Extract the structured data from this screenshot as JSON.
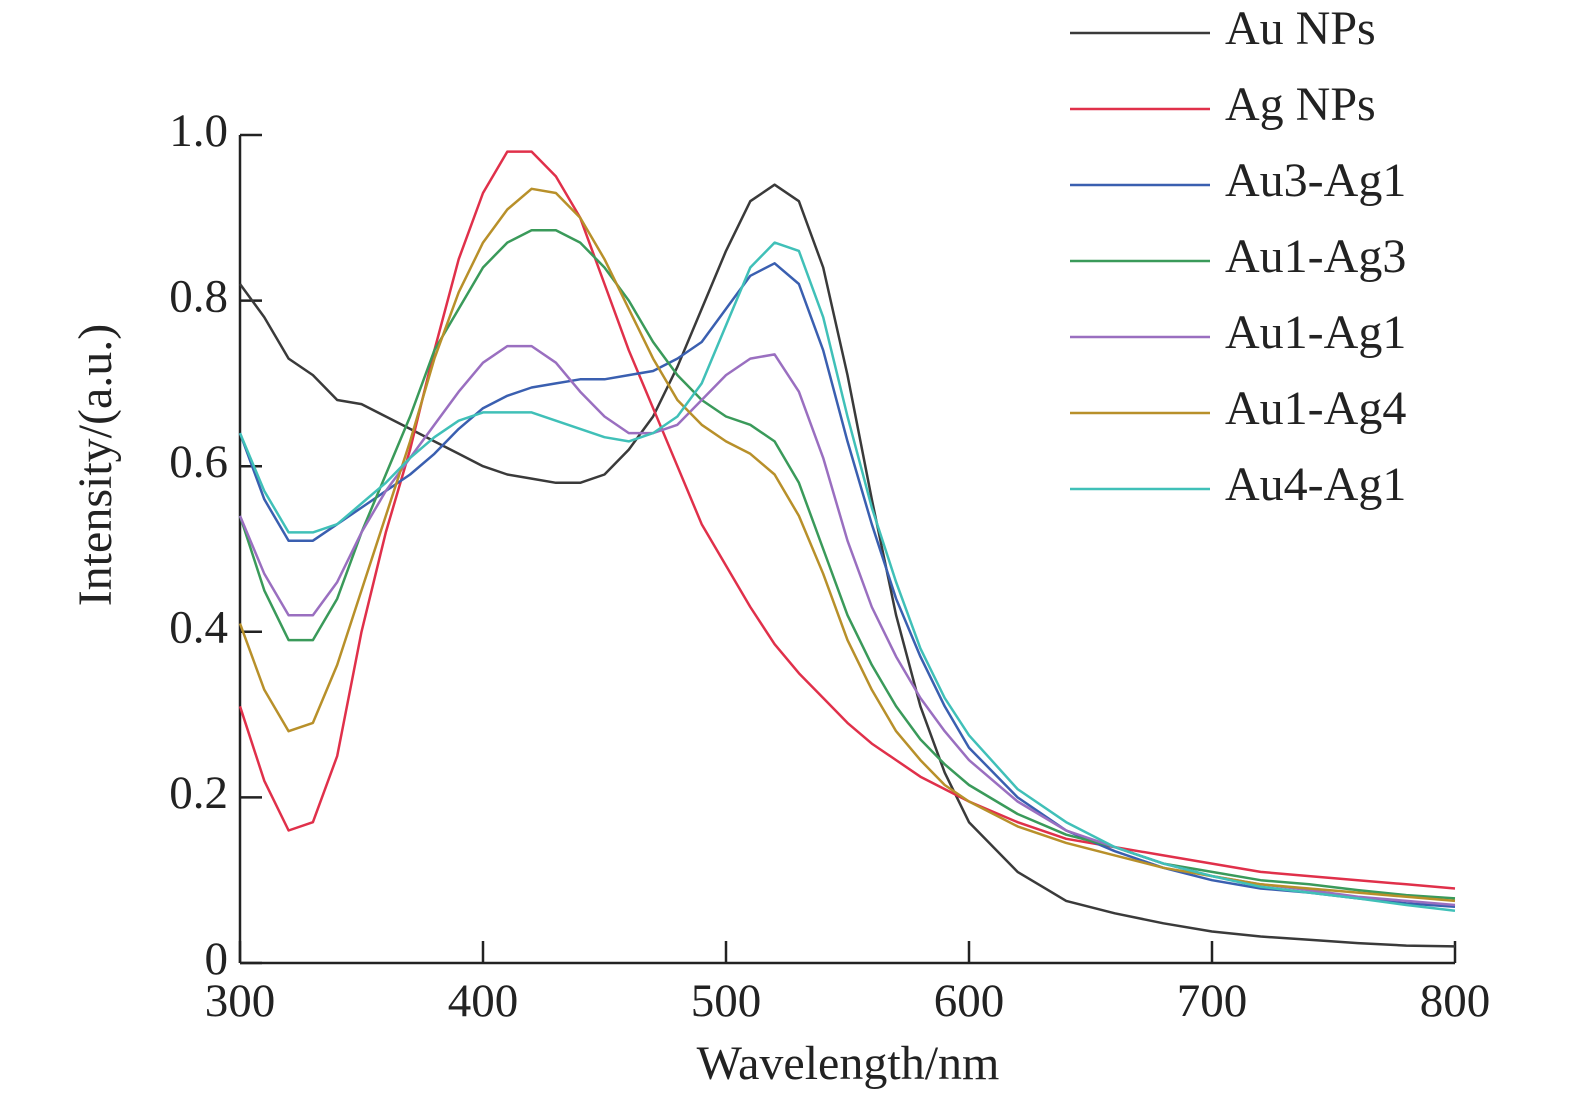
{
  "chart_data": {
    "type": "line",
    "xlabel": "Wavelength/nm",
    "ylabel": "Intensity/(a.u.)",
    "x": [
      300,
      310,
      320,
      330,
      340,
      350,
      360,
      370,
      380,
      390,
      400,
      410,
      420,
      430,
      440,
      450,
      460,
      470,
      480,
      490,
      500,
      510,
      520,
      530,
      540,
      550,
      560,
      570,
      580,
      590,
      600,
      620,
      640,
      660,
      680,
      700,
      720,
      740,
      760,
      780,
      800
    ],
    "series": [
      {
        "name": "Au NPs",
        "color": "#3a3a3a",
        "values": [
          0.82,
          0.78,
          0.73,
          0.71,
          0.68,
          0.675,
          0.66,
          0.645,
          0.63,
          0.615,
          0.6,
          0.59,
          0.585,
          0.58,
          0.58,
          0.59,
          0.62,
          0.66,
          0.72,
          0.79,
          0.86,
          0.92,
          0.94,
          0.92,
          0.84,
          0.71,
          0.56,
          0.42,
          0.31,
          0.23,
          0.17,
          0.11,
          0.075,
          0.06,
          0.048,
          0.038,
          0.032,
          0.028,
          0.024,
          0.021,
          0.02
        ]
      },
      {
        "name": "Ag NPs",
        "color": "#e0304a",
        "values": [
          0.31,
          0.22,
          0.16,
          0.17,
          0.25,
          0.4,
          0.52,
          0.62,
          0.74,
          0.85,
          0.93,
          0.98,
          0.98,
          0.95,
          0.9,
          0.82,
          0.74,
          0.67,
          0.6,
          0.53,
          0.48,
          0.43,
          0.385,
          0.35,
          0.32,
          0.29,
          0.265,
          0.245,
          0.225,
          0.21,
          0.195,
          0.17,
          0.15,
          0.14,
          0.13,
          0.12,
          0.11,
          0.105,
          0.1,
          0.095,
          0.09
        ]
      },
      {
        "name": "Au3-Ag1",
        "color": "#3a5fb0",
        "values": [
          0.64,
          0.56,
          0.51,
          0.51,
          0.53,
          0.55,
          0.57,
          0.59,
          0.615,
          0.645,
          0.67,
          0.685,
          0.695,
          0.7,
          0.705,
          0.705,
          0.71,
          0.715,
          0.73,
          0.75,
          0.79,
          0.83,
          0.845,
          0.82,
          0.74,
          0.63,
          0.53,
          0.44,
          0.37,
          0.31,
          0.26,
          0.2,
          0.16,
          0.135,
          0.115,
          0.1,
          0.09,
          0.085,
          0.078,
          0.072,
          0.068
        ]
      },
      {
        "name": "Au1-Ag3",
        "color": "#3a9a5a",
        "values": [
          0.54,
          0.45,
          0.39,
          0.39,
          0.44,
          0.52,
          0.59,
          0.66,
          0.74,
          0.79,
          0.84,
          0.87,
          0.885,
          0.885,
          0.87,
          0.84,
          0.8,
          0.75,
          0.71,
          0.68,
          0.66,
          0.65,
          0.63,
          0.58,
          0.5,
          0.42,
          0.36,
          0.31,
          0.27,
          0.24,
          0.215,
          0.18,
          0.155,
          0.14,
          0.12,
          0.11,
          0.1,
          0.095,
          0.088,
          0.082,
          0.078
        ]
      },
      {
        "name": "Au1-Ag1",
        "color": "#9a6fc0",
        "values": [
          0.54,
          0.47,
          0.42,
          0.42,
          0.46,
          0.52,
          0.57,
          0.61,
          0.65,
          0.69,
          0.725,
          0.745,
          0.745,
          0.725,
          0.69,
          0.66,
          0.64,
          0.64,
          0.65,
          0.68,
          0.71,
          0.73,
          0.735,
          0.69,
          0.61,
          0.51,
          0.43,
          0.37,
          0.32,
          0.28,
          0.245,
          0.195,
          0.16,
          0.14,
          0.12,
          0.105,
          0.095,
          0.088,
          0.08,
          0.075,
          0.07
        ]
      },
      {
        "name": "Au1-Ag4",
        "color": "#b8902a",
        "values": [
          0.41,
          0.33,
          0.28,
          0.29,
          0.36,
          0.45,
          0.54,
          0.63,
          0.73,
          0.81,
          0.87,
          0.91,
          0.935,
          0.93,
          0.9,
          0.85,
          0.79,
          0.73,
          0.68,
          0.65,
          0.63,
          0.615,
          0.59,
          0.54,
          0.47,
          0.39,
          0.33,
          0.28,
          0.245,
          0.215,
          0.195,
          0.165,
          0.145,
          0.13,
          0.115,
          0.105,
          0.095,
          0.09,
          0.085,
          0.08,
          0.075
        ]
      },
      {
        "name": "Au4-Ag1",
        "color": "#40c0b8",
        "values": [
          0.64,
          0.57,
          0.52,
          0.52,
          0.53,
          0.555,
          0.58,
          0.61,
          0.635,
          0.655,
          0.665,
          0.665,
          0.665,
          0.655,
          0.645,
          0.635,
          0.63,
          0.64,
          0.66,
          0.7,
          0.77,
          0.84,
          0.87,
          0.86,
          0.78,
          0.66,
          0.55,
          0.46,
          0.38,
          0.32,
          0.275,
          0.21,
          0.17,
          0.14,
          0.12,
          0.105,
          0.092,
          0.085,
          0.078,
          0.07,
          0.063
        ]
      }
    ],
    "xlim": [
      300,
      800
    ],
    "xticks": [
      300,
      400,
      500,
      600,
      700,
      800
    ],
    "ylim": [
      0,
      1
    ],
    "yticks": [
      0,
      0.2,
      0.4,
      0.6,
      0.8,
      {
        "value": 1,
        "label": "1.0"
      }
    ],
    "legend": "upper right"
  }
}
